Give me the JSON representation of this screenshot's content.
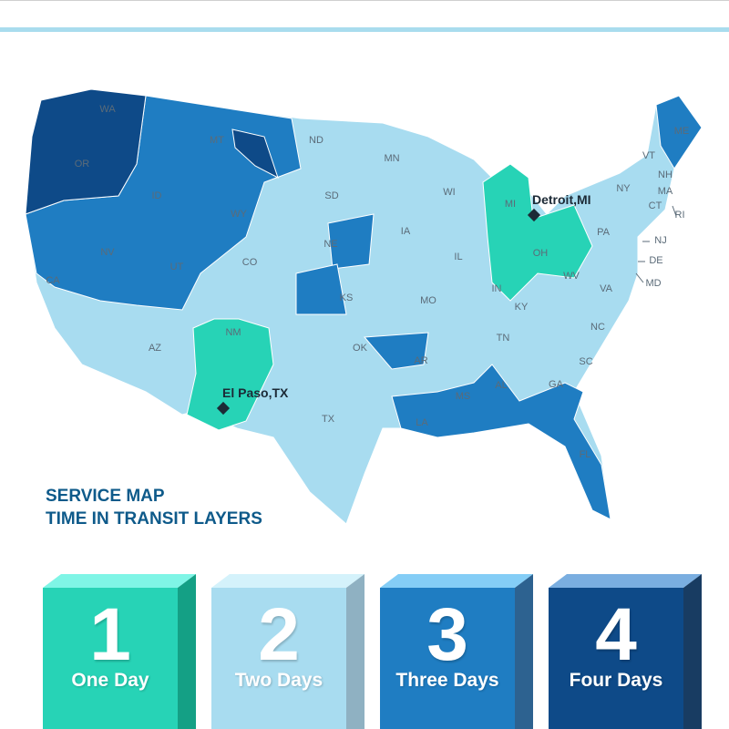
{
  "title": {
    "line1": "SERVICE MAP",
    "line2": "TIME IN TRANSIT LAYERS"
  },
  "colors": {
    "one_day": "#27d3b6",
    "two_days": "#a8dcf0",
    "three_days": "#1f7dc2",
    "four_days": "#0e4a88",
    "title": "#0e5a8a"
  },
  "cities": [
    {
      "label": "Detroit,MI",
      "icon": "diamond-marker-icon"
    },
    {
      "label": "El Paso,TX",
      "icon": "diamond-marker-icon"
    }
  ],
  "states": [
    "WA",
    "OR",
    "CA",
    "ID",
    "NV",
    "MT",
    "WY",
    "UT",
    "AZ",
    "CO",
    "NM",
    "ND",
    "SD",
    "NE",
    "KS",
    "OK",
    "TX",
    "MN",
    "IA",
    "MO",
    "AR",
    "LA",
    "WI",
    "IL",
    "MI",
    "IN",
    "OH",
    "KY",
    "TN",
    "MS",
    "AL",
    "GA",
    "FL",
    "SC",
    "NC",
    "VA",
    "WV",
    "PA",
    "NY",
    "VT",
    "NH",
    "ME",
    "MA",
    "CT",
    "RI",
    "NJ",
    "DE",
    "MD"
  ],
  "legend": [
    {
      "number": "1",
      "label": "One Day"
    },
    {
      "number": "2",
      "label": "Two Days"
    },
    {
      "number": "3",
      "label": "Three Days"
    },
    {
      "number": "4",
      "label": "Four Days"
    }
  ]
}
